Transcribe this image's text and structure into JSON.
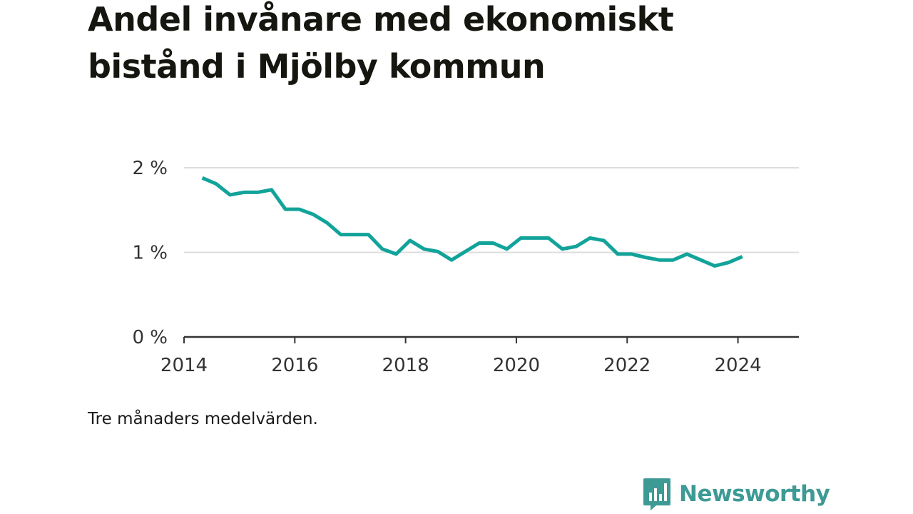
{
  "title": "Andel invånare med ekonomiskt bistånd i Mjölby kommun",
  "note": "Tre månaders medelvärden.",
  "brand": {
    "name": "Newsworthy",
    "icon": "bar-chart-bubble-icon"
  },
  "colors": {
    "line": "#12a39a",
    "grid": "#dddddd",
    "axis": "#333333",
    "brand": "#3d9a95"
  },
  "chart_data": {
    "type": "line",
    "title": "Andel invånare med ekonomiskt bistånd i Mjölby kommun",
    "xlabel": "",
    "ylabel": "",
    "ylim": [
      0,
      2
    ],
    "xlim": [
      2014.0,
      2025.1
    ],
    "y_ticks": [
      {
        "value": 0,
        "label": "0 %"
      },
      {
        "value": 1,
        "label": "1 %"
      },
      {
        "value": 2,
        "label": "2 %"
      }
    ],
    "x_ticks": [
      {
        "value": 2014,
        "label": "2014"
      },
      {
        "value": 2016,
        "label": "2016"
      },
      {
        "value": 2018,
        "label": "2018"
      },
      {
        "value": 2020,
        "label": "2020"
      },
      {
        "value": 2022,
        "label": "2022"
      },
      {
        "value": 2024,
        "label": "2024"
      }
    ],
    "grid": true,
    "series": [
      {
        "x": [
          2014.33,
          2014.58,
          2014.83,
          2015.08,
          2015.33,
          2015.58,
          2015.83,
          2016.08,
          2016.33,
          2016.58,
          2016.83,
          2017.08,
          2017.33,
          2017.58,
          2017.83,
          2018.08,
          2018.33,
          2018.58,
          2018.83,
          2019.08,
          2019.33,
          2019.58,
          2019.83,
          2020.08,
          2020.33,
          2020.58,
          2020.83,
          2021.08,
          2021.33,
          2021.58,
          2021.83,
          2022.08,
          2022.33,
          2022.58,
          2022.83,
          2023.08,
          2023.33,
          2023.58,
          2023.83,
          2024.08
        ],
        "values": [
          1.88,
          1.81,
          1.68,
          1.71,
          1.71,
          1.74,
          1.51,
          1.51,
          1.45,
          1.35,
          1.21,
          1.21,
          1.21,
          1.04,
          0.98,
          1.14,
          1.04,
          1.01,
          0.91,
          1.01,
          1.11,
          1.11,
          1.04,
          1.17,
          1.17,
          1.17,
          1.04,
          1.07,
          1.17,
          1.14,
          0.98,
          0.98,
          0.94,
          0.91,
          0.91,
          0.98,
          0.91,
          0.84,
          0.88,
          0.95
        ]
      }
    ]
  }
}
